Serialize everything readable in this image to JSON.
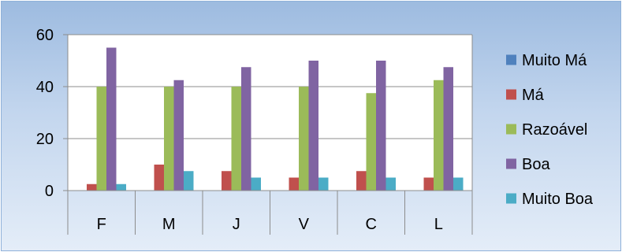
{
  "chart_data": {
    "type": "bar",
    "title": "",
    "xlabel": "",
    "ylabel": "",
    "categories": [
      "F",
      "M",
      "J",
      "V",
      "C",
      "L"
    ],
    "series": [
      {
        "name": "Muito Má",
        "color": "#4f81bd",
        "values": [
          0,
          0,
          0,
          0,
          0,
          0
        ]
      },
      {
        "name": "Má",
        "color": "#c0504d",
        "values": [
          2.5,
          10,
          7.5,
          5,
          7.5,
          5
        ]
      },
      {
        "name": "Razoável",
        "color": "#9bbb59",
        "values": [
          40,
          40,
          40,
          40,
          37.5,
          42.5
        ]
      },
      {
        "name": "Boa",
        "color": "#8064a2",
        "values": [
          55,
          42.5,
          47.5,
          50,
          50,
          47.5
        ]
      },
      {
        "name": "Muito Boa",
        "color": "#4bacc6",
        "values": [
          2.5,
          7.5,
          5,
          5,
          5,
          5
        ]
      }
    ],
    "yticks": [
      "0",
      "20",
      "40",
      "60"
    ],
    "ylim": [
      0,
      60
    ],
    "grid": true,
    "legend_position": "right"
  }
}
